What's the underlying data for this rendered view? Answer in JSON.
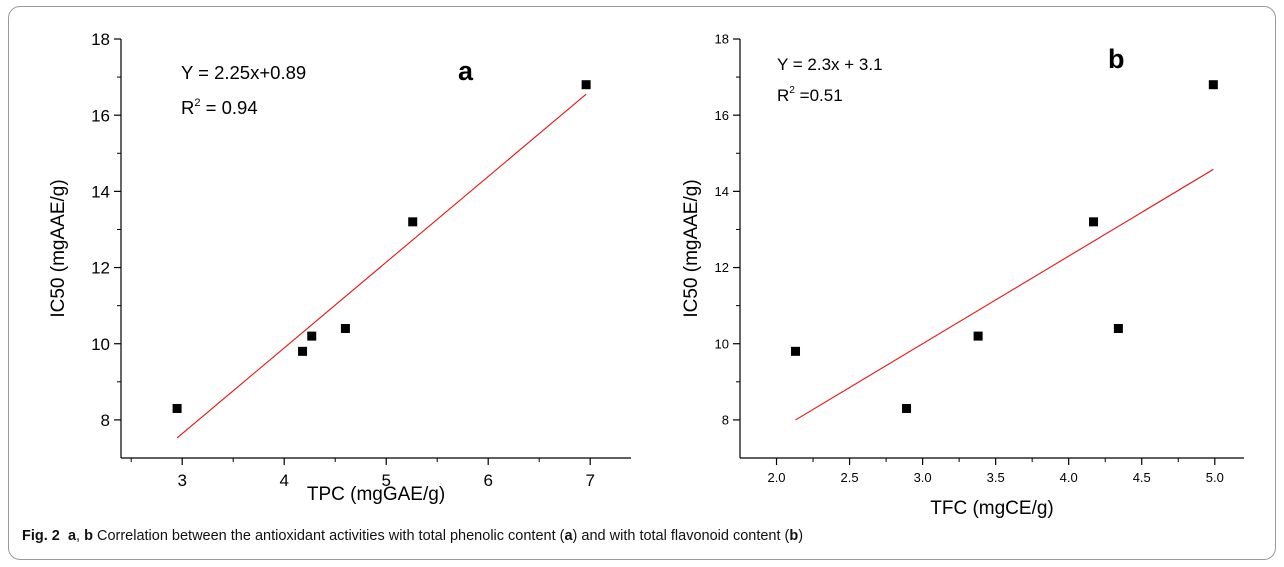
{
  "chart_data": [
    {
      "panel": "a",
      "type": "scatter",
      "xlabel": "TPC (mgGAE/g)",
      "ylabel": "IC50 (mgAAE/g)",
      "xlim": [
        2.4,
        7.4
      ],
      "ylim": [
        7,
        18
      ],
      "xticks": [
        "3",
        "4",
        "5",
        "6",
        "7"
      ],
      "yticks": [
        "8",
        "10",
        "12",
        "14",
        "16",
        "18"
      ],
      "points": [
        [
          2.95,
          8.3
        ],
        [
          4.18,
          9.8
        ],
        [
          4.27,
          10.2
        ],
        [
          4.6,
          10.4
        ],
        [
          5.26,
          13.2
        ],
        [
          6.96,
          16.8
        ]
      ],
      "fit_line": {
        "slope": 2.25,
        "intercept": 0.89,
        "x_from": 2.95,
        "x_to": 6.96,
        "color": "#e8120e"
      },
      "marker_color": "#000000",
      "equation": "Y = 2.25x+0.89",
      "r2_label": "R",
      "r2_value": " = 0.94"
    },
    {
      "panel": "b",
      "type": "scatter",
      "xlabel": "TFC (mgCE/g)",
      "ylabel": "IC50 (mgAAE/g)",
      "xlim": [
        1.75,
        5.2
      ],
      "ylim": [
        7,
        18
      ],
      "xticks": [
        "2.0",
        "2.5",
        "3.0",
        "3.5",
        "4.0",
        "4.5",
        "5.0"
      ],
      "yticks": [
        "8",
        "10",
        "12",
        "14",
        "16",
        "18"
      ],
      "points": [
        [
          2.13,
          9.8
        ],
        [
          2.89,
          8.3
        ],
        [
          3.38,
          10.2
        ],
        [
          4.17,
          13.2
        ],
        [
          4.34,
          10.4
        ],
        [
          4.99,
          16.8
        ]
      ],
      "fit_line": {
        "slope": 2.3,
        "intercept": 3.1,
        "x_from": 2.13,
        "x_to": 4.99,
        "color": "#e8120e"
      },
      "marker_color": "#000000",
      "equation": "Y = 2.3x + 3.1",
      "r2_label": "R",
      "r2_value": " =0.51"
    }
  ],
  "panel_letters": [
    "a",
    "b"
  ],
  "caption": {
    "fig_label": "Fig. 2",
    "a": "a",
    "sep": ", ",
    "b": "b",
    "text1": " Correlation between the antioxidant activities with total phenolic content (",
    "a2": "a",
    "text2": ") and with total flavonoid content (",
    "b2": "b",
    "text3": ")"
  }
}
